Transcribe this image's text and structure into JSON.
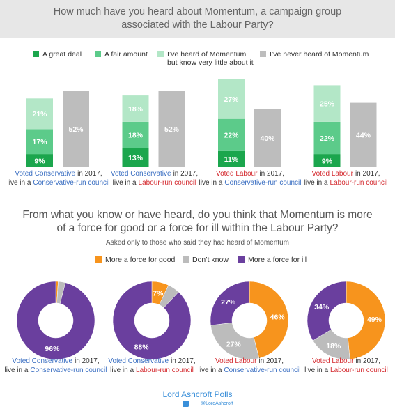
{
  "chart_data": [
    {
      "type": "bar",
      "stacked": true,
      "title": "How much have you heard about Momentum, a campaign group associated with the Labour Party?",
      "categories": [
        {
          "vote": "Voted Conservative",
          "vote_color": "#3b6fc2",
          "year": "in 2017,",
          "lead": "live in a",
          "council": "Conservative-run council",
          "council_color": "#3b6fc2"
        },
        {
          "vote": "Voted Conservative",
          "vote_color": "#3b6fc2",
          "year": "in 2017,",
          "lead": "live in a",
          "council": "Labour-run council",
          "council_color": "#d42a2f"
        },
        {
          "vote": "Voted Labour",
          "vote_color": "#d42a2f",
          "year": "in 2017,",
          "lead": "live in a",
          "council": "Conservative-run council",
          "council_color": "#3b6fc2"
        },
        {
          "vote": "Voted Labour",
          "vote_color": "#d42a2f",
          "year": "in 2017,",
          "lead": "live in a",
          "council": "Labour-run council",
          "council_color": "#d42a2f"
        }
      ],
      "series": [
        {
          "name": "A great deal",
          "color": "#1ba64d",
          "values": [
            9,
            13,
            11,
            9
          ],
          "value_labels": [
            "9%",
            "13%",
            "11%",
            "9%"
          ]
        },
        {
          "name": "A fair amount",
          "color": "#5ccb8a",
          "values": [
            17,
            18,
            22,
            22
          ],
          "value_labels": [
            "17%",
            "18%",
            "22%",
            "22%"
          ]
        },
        {
          "name": "I’ve heard of Momentum but know very little about it",
          "color": "#b3e7c7",
          "values": [
            21,
            18,
            27,
            25
          ],
          "value_labels": [
            "21%",
            "18%",
            "27%",
            "25%"
          ]
        },
        {
          "name": "I’ve never heard of Momentum",
          "color": "#bdbdbd",
          "values": [
            52,
            52,
            40,
            44
          ],
          "value_labels": [
            "52%",
            "52%",
            "40%",
            "44%"
          ]
        }
      ]
    },
    {
      "type": "donut",
      "title": "From what you know or have heard, do you think that Momentum is more of a force for good or a force for ill within the Labour Party?",
      "subtitle": "Asked only to those who said they had heard of Momentum",
      "categories": [
        {
          "vote": "Voted Conservative",
          "vote_color": "#3b6fc2",
          "year": "in 2017,",
          "lead": "live in a",
          "council": "Conservative-run council",
          "council_color": "#3b6fc2"
        },
        {
          "vote": "Voted Conservative",
          "vote_color": "#3b6fc2",
          "year": "in 2017,",
          "lead": "live in a",
          "council": "Labour-run council",
          "council_color": "#d42a2f"
        },
        {
          "vote": "Voted Labour",
          "vote_color": "#d42a2f",
          "year": "in 2017,",
          "lead": "live in a",
          "council": "Conservative-run council",
          "council_color": "#3b6fc2"
        },
        {
          "vote": "Voted Labour",
          "vote_color": "#d42a2f",
          "year": "in 2017,",
          "lead": "live in a",
          "council": "Labour-run council",
          "council_color": "#d42a2f"
        }
      ],
      "series": [
        {
          "name": "More a force for good",
          "color": "#f7941d",
          "values": [
            1,
            7,
            46,
            49
          ],
          "value_labels": [
            null,
            "7%",
            "46%",
            "49%"
          ]
        },
        {
          "name": "Don’t know",
          "color": "#bcbcbc",
          "values": [
            3,
            5,
            27,
            18
          ],
          "value_labels": [
            null,
            null,
            "27%",
            "18%"
          ]
        },
        {
          "name": "More a force for ill",
          "color": "#6a3f9e",
          "values": [
            96,
            88,
            27,
            34
          ],
          "value_labels": [
            "96%",
            "88%",
            "27%",
            "34%"
          ]
        }
      ]
    }
  ],
  "footer": {
    "brand": "Lord Ashcroft Polls",
    "handle": "@LordAshcroft"
  }
}
